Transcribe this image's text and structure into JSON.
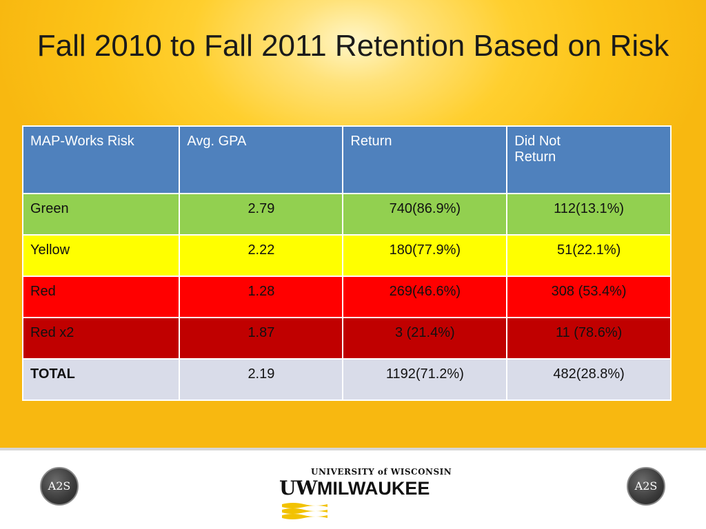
{
  "slide": {
    "title": "Fall 2010 to Fall 2011 Retention Based on Risk"
  },
  "table": {
    "headers": [
      "MAP-Works Risk",
      "Avg. GPA",
      "Return",
      "Did Not",
      "Return"
    ],
    "rows": [
      {
        "risk": "Green",
        "gpa": "2.79",
        "return": "740(86.9%)",
        "not_return": "112(13.1%)",
        "color": "#92d050"
      },
      {
        "risk": "Yellow",
        "gpa": "2.22",
        "return": "180(77.9%)",
        "not_return": "51(22.1%)",
        "color": "#ffff00"
      },
      {
        "risk": "Red",
        "gpa": "1.28",
        "return": "269(46.6%)",
        "not_return": "308 (53.4%)",
        "color": "#ff0000"
      },
      {
        "risk": "Red x2",
        "gpa": "1.87",
        "return": "3 (21.4%)",
        "not_return": "11 (78.6%)",
        "color": "#c00000"
      },
      {
        "risk": "TOTAL",
        "gpa": "2.19",
        "return": "1192(71.2%)",
        "not_return": "482(28.8%)",
        "color": "#d9dce9"
      }
    ],
    "header_color": "#4f81bd"
  },
  "footer": {
    "left_badge": "A2S",
    "right_badge": "A2S",
    "logo_top": "UNIVERSITY of WISCONSIN",
    "logo_uw": "UW",
    "logo_main": "MILWAUKEE",
    "icons": [
      "a2s-badge-icon",
      "uwm-logo-icon",
      "a2s-badge-icon"
    ]
  },
  "colors": {
    "background": "#fcc419",
    "accent_gold": "#f2c200"
  }
}
